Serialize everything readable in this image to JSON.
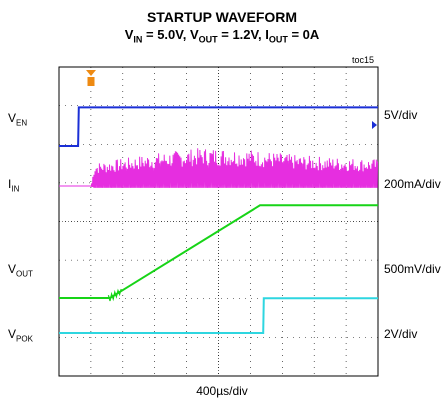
{
  "chart_data": {
    "type": "line",
    "title": "STARTUP WAVEFORM",
    "subtitle": {
      "parts": [
        {
          "main": "V",
          "sub": "IN",
          "rest": " = 5.0V, "
        },
        {
          "main": "V",
          "sub": "OUT",
          "rest": " = 1.2V, "
        },
        {
          "main": "I",
          "sub": "OUT",
          "rest": " = 0A"
        }
      ]
    },
    "figure_tag": "toc15",
    "xlabel": "400µs/div",
    "x_divisions": 10,
    "y_divisions": 8,
    "grid": true,
    "channels": [
      {
        "label_main": "V",
        "label_sub": "EN",
        "scale": "5V/div",
        "color": "#1a2fd6",
        "unit": "V",
        "per_div": 5,
        "points": [
          [
            0,
            0
          ],
          [
            0.6,
            0
          ],
          [
            0.62,
            5.0
          ],
          [
            10,
            5.0
          ]
        ]
      },
      {
        "label_main": "I",
        "label_sub": "IN",
        "scale": "200mA/div",
        "color": "#e62ee0",
        "unit": "mA",
        "per_div": 200,
        "envelope": [
          [
            0,
            0,
            0
          ],
          [
            1.0,
            0,
            0
          ],
          [
            1.1,
            -10,
            120
          ],
          [
            3.0,
            -10,
            170
          ],
          [
            4.5,
            -10,
            200
          ],
          [
            6.0,
            -10,
            190
          ],
          [
            7.5,
            -10,
            160
          ],
          [
            8.5,
            -10,
            150
          ],
          [
            10,
            -10,
            140
          ]
        ]
      },
      {
        "label_main": "V",
        "label_sub": "OUT",
        "scale": "500mV/div",
        "color": "#17d417",
        "unit": "V",
        "per_div": 0.5,
        "points": [
          [
            0,
            0
          ],
          [
            1.6,
            0
          ],
          [
            6.3,
            1.2
          ],
          [
            10,
            1.2
          ]
        ]
      },
      {
        "label_main": "V",
        "label_sub": "POK",
        "scale": "2V/div",
        "color": "#2ed6e0",
        "unit": "V",
        "per_div": 2,
        "points": [
          [
            0,
            0
          ],
          [
            6.4,
            0
          ],
          [
            6.42,
            1.8
          ],
          [
            10,
            1.8
          ]
        ]
      }
    ]
  }
}
